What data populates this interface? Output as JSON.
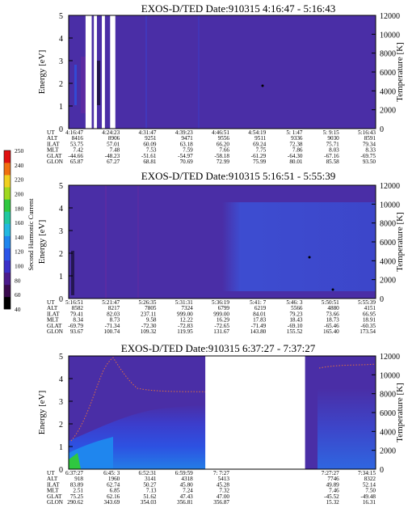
{
  "colors": {
    "background_field": "#4a2ea6",
    "dropout": "#ffffff",
    "tick_axis": "#000000"
  },
  "colorbar": {
    "label": "Second Harmonic Current",
    "ticks": [
      "40",
      "60",
      "80",
      "100",
      "120",
      "140",
      "160",
      "180",
      "200",
      "220",
      "240",
      "250"
    ],
    "colors": [
      "#000000",
      "#3a0a4e",
      "#4b1a8c",
      "#3a2fc8",
      "#2a55e8",
      "#1f86ee",
      "#22b8e0",
      "#20c8a0",
      "#30c840",
      "#a0d820",
      "#f0d020",
      "#f07010",
      "#e01010"
    ]
  },
  "chart_data": [
    {
      "type": "heatmap",
      "title": "EXOS-D/TED    Date:910315   4:16:47 - 5:16:43",
      "ylabel": "Energy [eV]",
      "y2label": "Temperature [K]",
      "ylim": [
        0,
        5
      ],
      "y2lim": [
        0,
        12000
      ],
      "yticks": [
        "0",
        "1",
        "2",
        "3",
        "4",
        "5"
      ],
      "y2ticks": [
        "0",
        "2000",
        "4000",
        "6000",
        "8000",
        "10000",
        "12000"
      ],
      "data_gaps_x_fraction": [
        [
          0.055,
          0.075
        ],
        [
          0.082,
          0.092
        ],
        [
          0.108,
          0.118
        ],
        [
          0.135,
          0.152
        ]
      ],
      "table": {
        "row_labels": [
          "UT",
          "ALT",
          "ILAT",
          "MLT",
          "GLAT",
          "GLON"
        ],
        "columns": [
          [
            "4:16:47",
            "8416",
            "53.75",
            "7.42",
            "-44.66",
            "65.87"
          ],
          [
            "4:24:23",
            "8906",
            "57.01",
            "7.48",
            "-48.23",
            "67.27"
          ],
          [
            "4:31:47",
            "9251",
            "60.09",
            "7.53",
            "-51.61",
            "68.81"
          ],
          [
            "4:39:23",
            "9471",
            "63.18",
            "7.59",
            "-54.97",
            "70.69"
          ],
          [
            "4:46:51",
            "9556",
            "66.20",
            "7.66",
            "-58.18",
            "72.99"
          ],
          [
            "4:54:19",
            "9511",
            "69.24",
            "7.75",
            "-61.29",
            "75.99"
          ],
          [
            "5: 1:47",
            "9336",
            "72.38",
            "7.86",
            "-64.30",
            "80.01"
          ],
          [
            "5: 9:15",
            "9030",
            "75.71",
            "8.03",
            "-67.16",
            "85.58"
          ],
          [
            "5:16:43",
            "8591",
            "79.34",
            "8.33",
            "-69.75",
            "93.50"
          ]
        ]
      }
    },
    {
      "type": "heatmap",
      "title": "EXOS-D/TED    Date:910315   5:16:51 - 5:55:39",
      "ylabel": "Energy [eV]",
      "y2label": "Temperature [K]",
      "ylim": [
        0,
        5
      ],
      "y2lim": [
        0,
        12000
      ],
      "yticks": [
        "0",
        "1",
        "2",
        "3",
        "4",
        "5"
      ],
      "y2ticks": [
        "0",
        "2000",
        "4000",
        "6000",
        "8000",
        "10000",
        "12000"
      ],
      "table": {
        "row_labels": [
          "UT",
          "ALT",
          "ILAT",
          "MLT",
          "GLAT",
          "GLON"
        ],
        "columns": [
          [
            "5:16:51",
            "8582",
            "79.41",
            "8.34",
            "-69.79",
            "93.67"
          ],
          [
            "5:21:47",
            "8217",
            "82.03",
            "8.73",
            "-71.34",
            "100.74"
          ],
          [
            "5:26:35",
            "7805",
            "237.11",
            "9.58",
            "-72.30",
            "109.32"
          ],
          [
            "5:31:31",
            "7324",
            "999.00",
            "12.22",
            "-72.83",
            "119.95"
          ],
          [
            "5:36:19",
            "6799",
            "999.00",
            "16.29",
            "-72.65",
            "131.67"
          ],
          [
            "5:41: 7",
            "6219",
            "84.01",
            "17.83",
            "-71.49",
            "143.80"
          ],
          [
            "5:46: 3",
            "5566",
            "79.23",
            "18.43",
            "-69.10",
            "155.52"
          ],
          [
            "5:50:51",
            "4880",
            "73.66",
            "18.73",
            "-65.46",
            "165.40"
          ],
          [
            "5:55:39",
            "4151",
            "66.95",
            "18.91",
            "-60.35",
            "173.54"
          ]
        ]
      }
    },
    {
      "type": "heatmap",
      "title": "EXOS-D/TED    Date:910315   6:37:27 - 7:37:27",
      "ylabel": "Energy [eV]",
      "y2label": "Temperature [K]",
      "ylim": [
        0,
        5
      ],
      "y2lim": [
        0,
        12000
      ],
      "yticks": [
        "0",
        "1",
        "2",
        "3",
        "4",
        "5"
      ],
      "y2ticks": [
        "0",
        "2000",
        "4000",
        "6000",
        "8000",
        "10000",
        "12000"
      ],
      "data_gaps_x_fraction": [
        [
          0.445,
          0.77
        ]
      ],
      "table": {
        "row_labels": [
          "UT",
          "ALT",
          "ILAT",
          "MLT",
          "GLAT",
          "GLON"
        ],
        "columns": [
          [
            "6:37:27",
            "918",
            "83.89",
            "2.51",
            "75.25",
            "290.62"
          ],
          [
            "6:45: 3",
            "1960",
            "62.74",
            "6.85",
            "62.16",
            "343.69"
          ],
          [
            "6:52:31",
            "3141",
            "50.27",
            "7.13",
            "51.62",
            "354.03"
          ],
          [
            "6:59:59",
            "4318",
            "45.80",
            "7.24",
            "47.43",
            "356.81"
          ],
          [
            "7: 7:27",
            "5413",
            "45.28",
            "7.32",
            "47.00",
            "356.87"
          ],
          [
            "",
            "",
            "",
            "",
            "",
            ""
          ],
          [
            "",
            "",
            "",
            "",
            "",
            ""
          ],
          [
            "7:27:27",
            "7746",
            "49.89",
            "7.46",
            "-45.52",
            "15.32"
          ],
          [
            "7:34:15",
            "8322",
            "52.14",
            "7.50",
            "-49.48",
            "16.31"
          ]
        ]
      }
    }
  ]
}
